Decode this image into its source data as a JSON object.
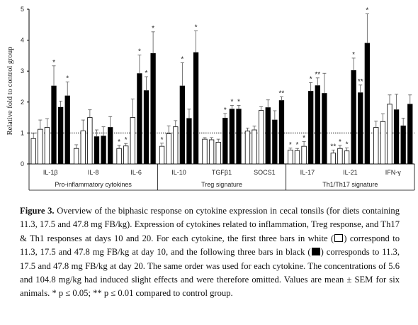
{
  "chart_data": {
    "type": "bar",
    "ylabel": "Relative fold to control group",
    "ylim": [
      0,
      5
    ],
    "yticks": [
      "0",
      "1",
      "2",
      "3",
      "4",
      "5"
    ],
    "reference_line": 1,
    "series_colors": [
      "#ffffff",
      "#ffffff",
      "#ffffff",
      "#000000",
      "#000000",
      "#000000"
    ],
    "categories": [
      "IL-1β",
      "IL-8",
      "IL-6",
      "IL-10",
      "TGFβ1",
      "SOCS1",
      "IL-17",
      "IL-21",
      "IFN-γ"
    ],
    "values": [
      [
        0.82,
        1.12,
        1.18,
        2.52,
        1.83,
        2.2
      ],
      [
        0.5,
        1.07,
        1.5,
        0.88,
        0.9,
        1.18
      ],
      [
        0.5,
        0.58,
        1.5,
        2.92,
        2.37,
        3.57
      ],
      [
        0.57,
        0.98,
        1.2,
        2.52,
        1.47,
        3.6
      ],
      [
        0.8,
        0.78,
        0.7,
        1.48,
        1.77,
        1.77
      ],
      [
        1.06,
        1.1,
        1.73,
        1.82,
        1.42,
        2.05
      ],
      [
        0.45,
        0.43,
        0.57,
        2.35,
        2.53,
        2.28
      ],
      [
        0.35,
        0.5,
        0.42,
        3.02,
        2.3,
        3.9
      ],
      [
        1.18,
        1.37,
        1.93,
        1.75,
        1.23,
        1.93
      ]
    ],
    "errors": [
      [
        0.17,
        0.3,
        0.28,
        0.65,
        0.2,
        0.45
      ],
      [
        0.12,
        0.35,
        0.25,
        0.22,
        0.3,
        0.35
      ],
      [
        0.1,
        0.08,
        0.6,
        0.6,
        0.45,
        0.7
      ],
      [
        0.1,
        0.25,
        0.2,
        0.75,
        0.3,
        0.7
      ],
      [
        0.05,
        0.07,
        0.1,
        0.15,
        0.12,
        0.12
      ],
      [
        0.1,
        0.12,
        0.12,
        0.25,
        0.3,
        0.12
      ],
      [
        0.06,
        0.07,
        0.15,
        0.28,
        0.25,
        0.65
      ],
      [
        0.1,
        0.1,
        0.1,
        0.4,
        0.25,
        0.95
      ],
      [
        0.2,
        0.25,
        0.3,
        0.5,
        0.25,
        0.3
      ]
    ],
    "significance": [
      [
        "",
        "",
        "",
        "*",
        "",
        "*"
      ],
      [
        "",
        "",
        "",
        "",
        "",
        ""
      ],
      [
        "*",
        "*",
        "",
        "*",
        "*",
        "*"
      ],
      [
        "*",
        "",
        "",
        "*",
        "",
        "*"
      ],
      [
        "",
        "",
        "",
        "*",
        "*",
        "*"
      ],
      [
        "",
        "",
        "",
        "",
        "",
        "**"
      ],
      [
        "*",
        "*",
        "*",
        "*",
        "**",
        ""
      ],
      [
        "**",
        "*",
        "*",
        "*",
        "**",
        "*"
      ],
      [
        "",
        "",
        "",
        "",
        "",
        ""
      ]
    ],
    "groups": [
      {
        "label": "Pro-inflammatory cytokines",
        "start": 0,
        "end": 2
      },
      {
        "label": "Treg signature",
        "start": 3,
        "end": 5
      },
      {
        "label": "Th1/Th17 signature",
        "start": 6,
        "end": 8
      }
    ]
  },
  "caption": {
    "label": "Figure 3.",
    "part1": " Overview of the biphasic response on cytokine expression in cecal tonsils (for diets containing 11.3, 17.5 and 47.8 mg FB/kg). Expression of cytokines related to inflammation, Treg response, and Th17 & Th1 responses at days 10 and 20. For each cytokine, the first three bars in white (",
    "part2": ") correspond to 11.3, 17.5 and 47.8 mg FB/kg at day 10, and the following three bars in black (",
    "part3": ") corresponds to 11.3, 17.5 and 47.8 mg FB/kg at day 20. The same order was used for each cytokine. The concentrations of 5.6 and 104.8 mg/kg had induced slight effects and were therefore omitted. Values are mean ± SEM for six animals. ",
    "p1": "* p ≤ 0.05; ** p ≤ 0.01 compared to control group."
  }
}
